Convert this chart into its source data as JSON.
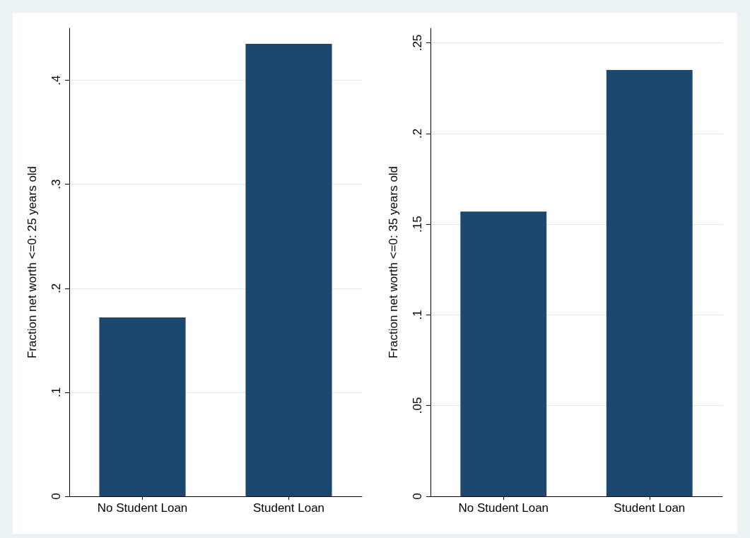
{
  "chart_data": [
    {
      "type": "bar",
      "ylabel": "Fraction net worth <=0: 25 years old",
      "categories": [
        "No Student Loan",
        "Student Loan"
      ],
      "values": [
        0.172,
        0.435
      ],
      "color": "#1c476f",
      "ylim": [
        0,
        0.45
      ],
      "yticks": [
        {
          "value": 0,
          "label": "0"
        },
        {
          "value": 0.1,
          "label": ".1"
        },
        {
          "value": 0.2,
          "label": ".2"
        },
        {
          "value": 0.3,
          "label": ".3"
        },
        {
          "value": 0.4,
          "label": ".4"
        }
      ],
      "grid": "y"
    },
    {
      "type": "bar",
      "ylabel": "Fraction net worth <=0: 35 years old",
      "categories": [
        "No Student Loan",
        "Student Loan"
      ],
      "values": [
        0.157,
        0.235
      ],
      "color": "#1c476f",
      "ylim": [
        0,
        0.258
      ],
      "yticks": [
        {
          "value": 0,
          "label": "0"
        },
        {
          "value": 0.05,
          "label": ".05"
        },
        {
          "value": 0.1,
          "label": ".1"
        },
        {
          "value": 0.15,
          "label": ".15"
        },
        {
          "value": 0.2,
          "label": ".2"
        },
        {
          "value": 0.25,
          "label": ".25"
        }
      ],
      "grid": "y"
    }
  ]
}
